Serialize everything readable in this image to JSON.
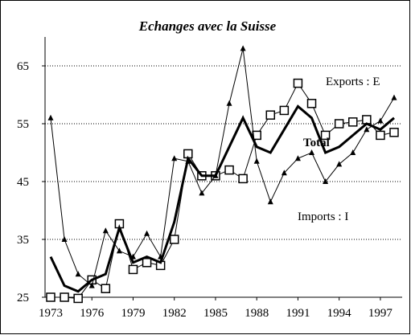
{
  "chart_data": {
    "type": "line",
    "title": "Echanges avec la Suisse",
    "x": [
      1973,
      1974,
      1975,
      1976,
      1977,
      1978,
      1979,
      1980,
      1981,
      1982,
      1983,
      1984,
      1985,
      1986,
      1987,
      1988,
      1989,
      1990,
      1991,
      1992,
      1993,
      1994,
      1995,
      1996,
      1997,
      1998
    ],
    "series": [
      {
        "name": "Exports : E",
        "color": "#000000",
        "marker": "square",
        "width": 1,
        "values": [
          25,
          25,
          24.8,
          28,
          26.5,
          37.7,
          29.8,
          31,
          30.5,
          35,
          49.8,
          46,
          46,
          47,
          45.5,
          53,
          56.5,
          57.3,
          62,
          58.5,
          53,
          55,
          55.3,
          55.7,
          53,
          53.5
        ]
      },
      {
        "name": "Imports : I",
        "color": "#000000",
        "marker": "triangle",
        "width": 1,
        "values": [
          56,
          35,
          29,
          27,
          36.5,
          33,
          32,
          36,
          32,
          49,
          48.5,
          43,
          46,
          58.5,
          68,
          48.5,
          41.5,
          46.5,
          49,
          50,
          45,
          48,
          50,
          54,
          55.5,
          59.5
        ]
      },
      {
        "name": "Total",
        "color": "#000000",
        "marker": "none",
        "width": 3,
        "values": [
          32,
          27,
          26,
          28,
          29,
          37,
          31,
          32,
          31,
          38,
          49,
          46,
          46,
          51,
          56,
          51,
          50,
          54,
          58,
          56,
          50,
          51,
          53,
          55,
          54,
          56
        ]
      }
    ],
    "xlim": [
      1973,
      1998
    ],
    "xticks": [
      1973,
      1976,
      1979,
      1982,
      1985,
      1988,
      1991,
      1994,
      1997
    ],
    "ylim": [
      25,
      70
    ],
    "yticks": [
      25,
      35,
      45,
      55,
      65
    ],
    "grid": true
  }
}
